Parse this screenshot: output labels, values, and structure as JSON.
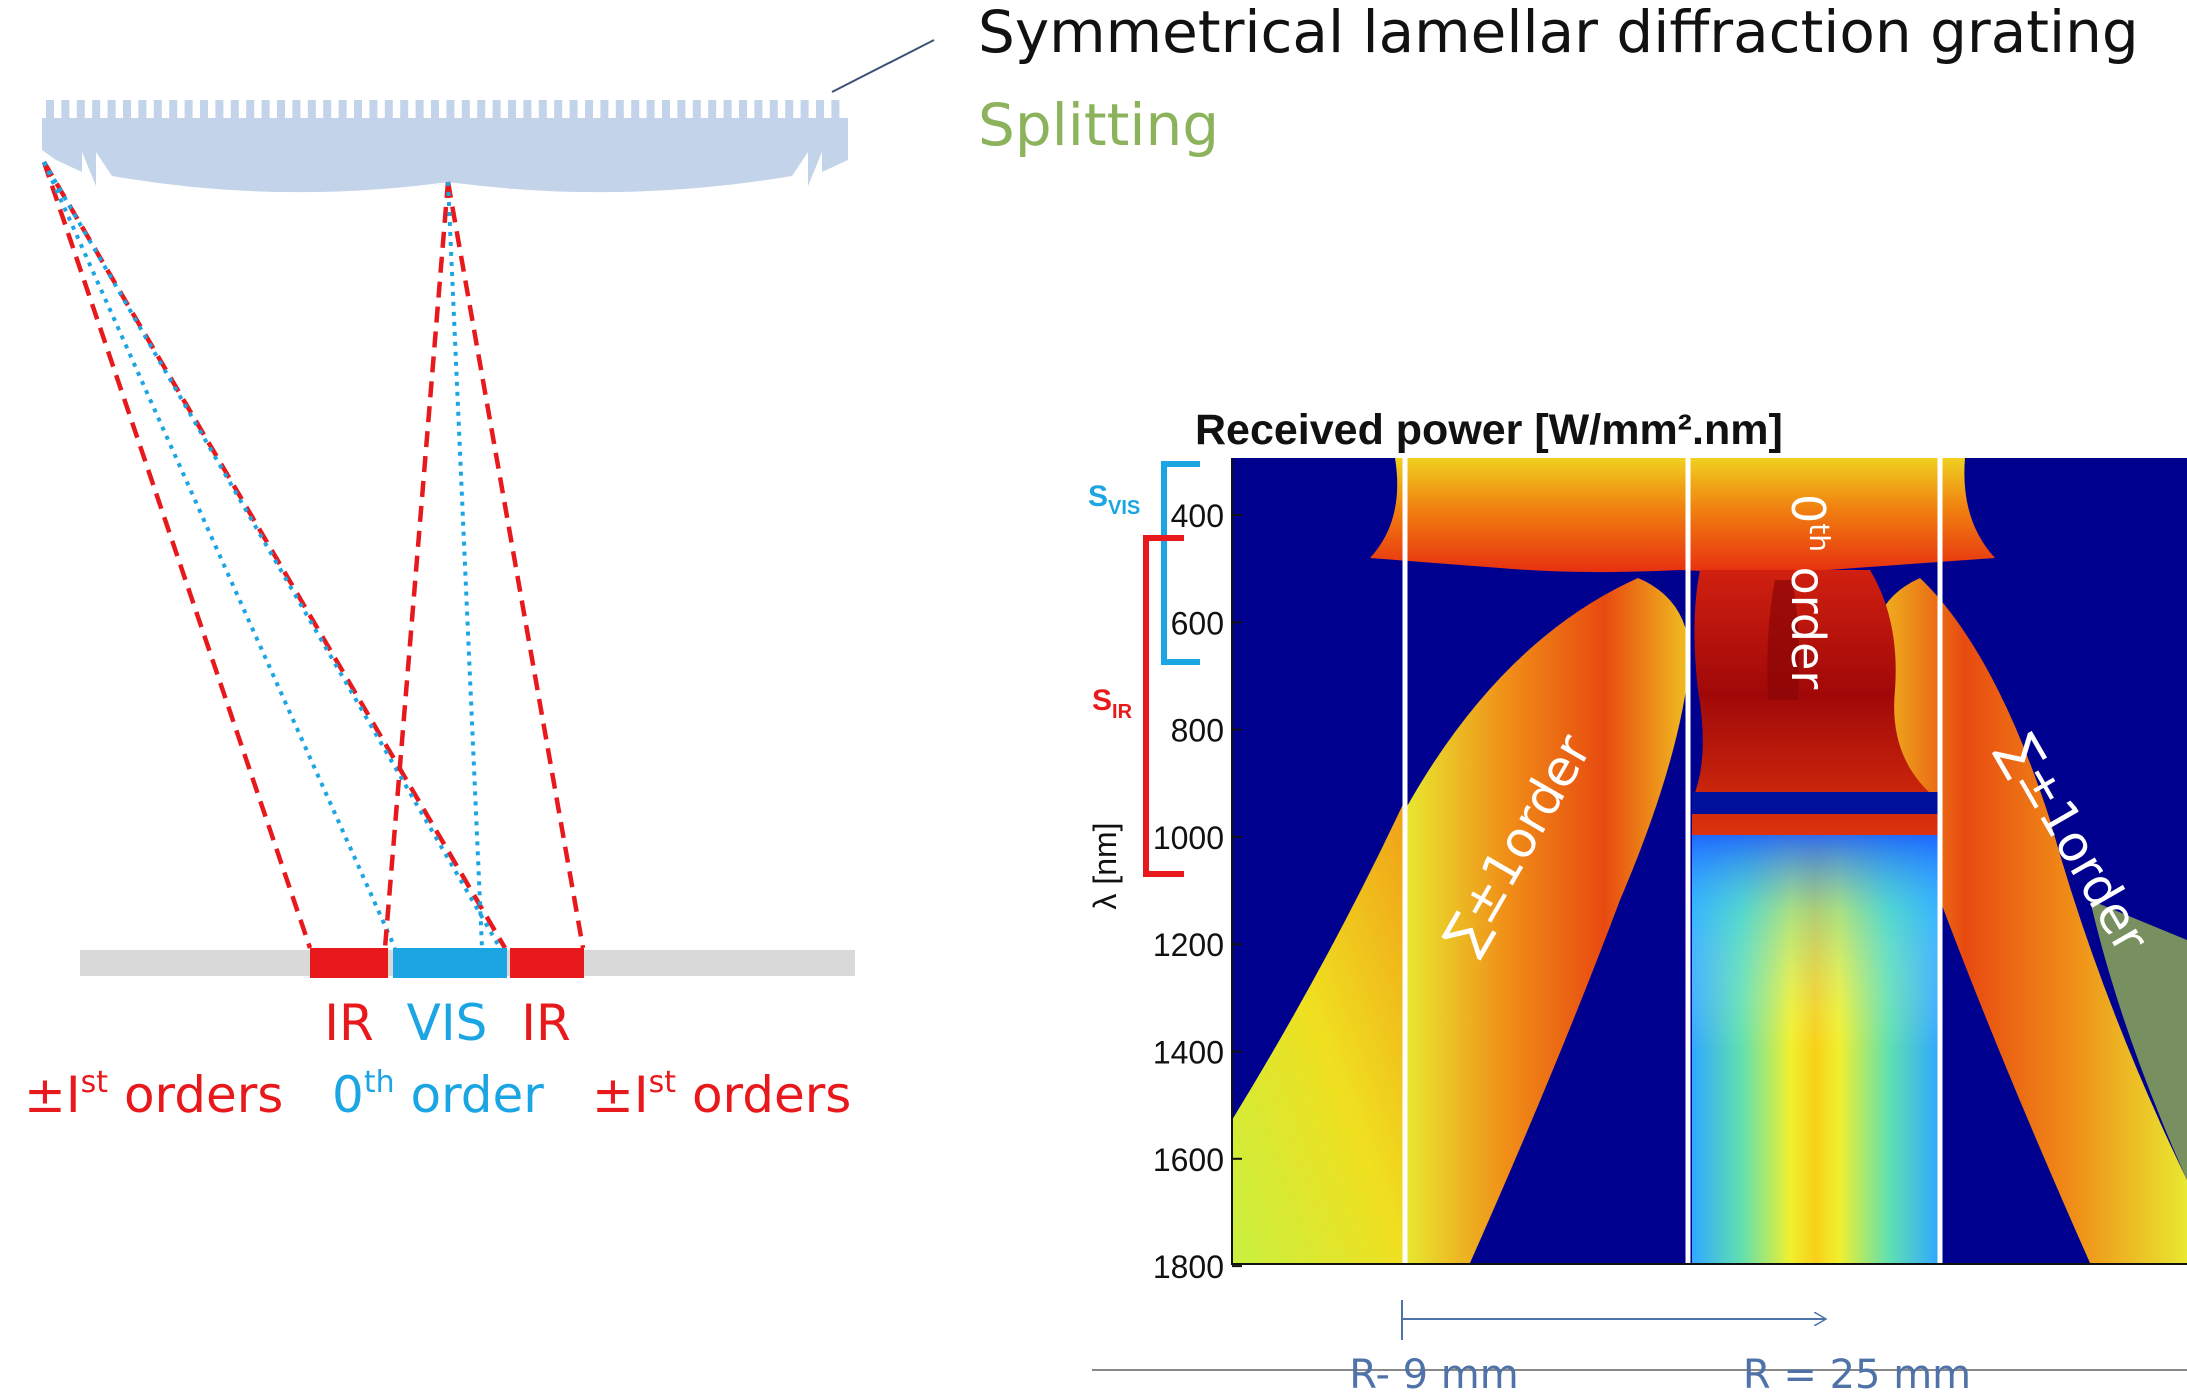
{
  "header": {
    "title": "Symmetrical lamellar diffraction grating",
    "subtitle": "Splitting"
  },
  "diagram": {
    "detector_labels": {
      "left_band": "IR",
      "center_band": "VIS",
      "right_band": "IR"
    },
    "order_labels": {
      "left": {
        "pm": "±I",
        "sup": "st",
        "rest": " orders"
      },
      "center": {
        "base": "0",
        "sup": "th",
        "rest": " order"
      },
      "right": {
        "pm": "±I",
        "sup": "st",
        "rest": " orders"
      }
    }
  },
  "chart": {
    "title": "Received power [W/mm².nm]",
    "ylabel": "λ [nm]",
    "yticks": [
      "400",
      "600",
      "800",
      "1000",
      "1200",
      "1400",
      "1600",
      "1800"
    ],
    "s_vis": {
      "base": "S",
      "sub": "VIS"
    },
    "s_ir": {
      "base": "S",
      "sub": "IR"
    },
    "annotations": {
      "zero_order": {
        "base": "0",
        "sup": "th",
        "rest": " order"
      },
      "left_order": "∑±1order",
      "right_order": "∑±1order"
    },
    "r_labels": {
      "left": "R- 9 mm",
      "right": "R = 25 mm"
    }
  },
  "colors": {
    "ir": "#e8191c",
    "vis": "#1ba6e3",
    "grating": "#c2d3ea",
    "detector": "#d9d9d9",
    "subtitle": "#8cb35c",
    "r_label": "#4f73a8",
    "heatmap_bg": "#00008f"
  }
}
